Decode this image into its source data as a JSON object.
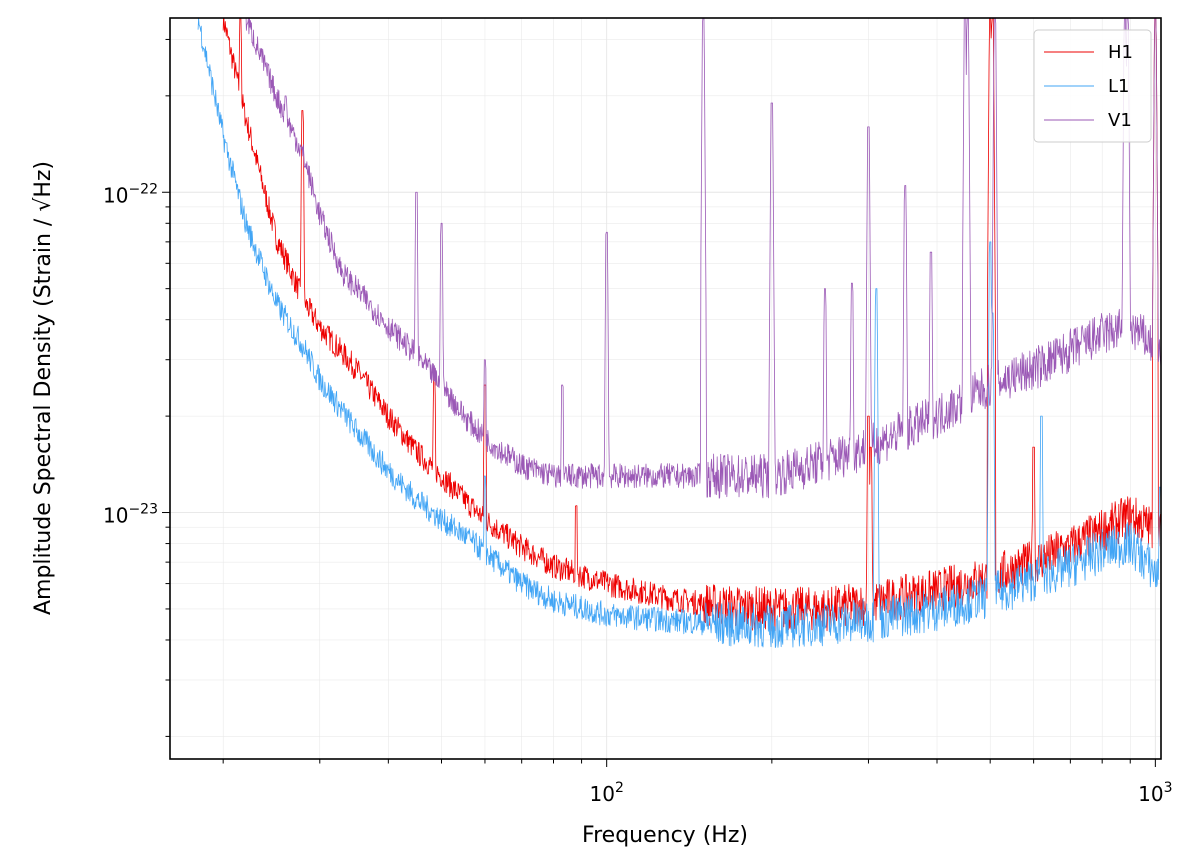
{
  "chart_data": {
    "type": "line",
    "xlabel": "Frequency (Hz)",
    "ylabel": "Amplitude Spectral Density (Strain / √Hz)",
    "x_scale": "log",
    "y_scale": "log",
    "xlim": [
      16,
      1024
    ],
    "ylim": [
      1.7e-24,
      3.5e-22
    ],
    "grid": true,
    "legend_position": "top-right",
    "x_tick_labels": [
      {
        "value": 100,
        "label": "10",
        "exp": "2"
      },
      {
        "value": 1000,
        "label": "10",
        "exp": "3"
      }
    ],
    "y_tick_labels": [
      {
        "value": 1e-23,
        "label": "10",
        "exp": "−23"
      },
      {
        "value": 1e-22,
        "label": "10",
        "exp": "−22"
      }
    ],
    "series": [
      {
        "name": "H1",
        "color": "#ee0000",
        "x": [
          20,
          22,
          25,
          28,
          30,
          35,
          40,
          45,
          50,
          55,
          60,
          70,
          80,
          100,
          130,
          160,
          200,
          250,
          300,
          400,
          500,
          600,
          700,
          800,
          900,
          1000,
          1024
        ],
        "y": [
          3.5e-22,
          1.7e-22,
          7.2e-23,
          4.6e-23,
          3.8e-23,
          2.8e-23,
          2e-23,
          1.55e-23,
          1.3e-23,
          1.1e-23,
          9.5e-24,
          7.8e-24,
          6.8e-24,
          6e-24,
          5.4e-24,
          5.1e-24,
          5e-24,
          5e-24,
          5.2e-24,
          5.7e-24,
          6.3e-24,
          7e-24,
          7.8e-24,
          8.8e-24,
          9.8e-24,
          8.8e-24,
          8.5e-24
        ],
        "lines": [
          {
            "f": 21.5,
            "amp": 3.5e-22
          },
          {
            "f": 27.9,
            "amp": 1.8e-22
          },
          {
            "f": 48.5,
            "amp": 2.7e-23
          },
          {
            "f": 60,
            "amp": 2.5e-23
          },
          {
            "f": 88,
            "amp": 1.05e-23
          },
          {
            "f": 300,
            "amp": 2e-23
          },
          {
            "f": 303,
            "amp": 1.6e-23
          },
          {
            "f": 500,
            "amp": 3.5e-22
          },
          {
            "f": 505,
            "amp": 3.5e-22
          },
          {
            "f": 600,
            "amp": 1.6e-23
          },
          {
            "f": 1000,
            "amp": 3.5e-22
          }
        ]
      },
      {
        "name": "L1",
        "color": "#42a5f5",
        "x": [
          18,
          20,
          22,
          25,
          28,
          30,
          35,
          40,
          45,
          50,
          55,
          60,
          70,
          80,
          100,
          130,
          160,
          200,
          250,
          300,
          400,
          500,
          600,
          700,
          800,
          900,
          1000,
          1024
        ],
        "y": [
          3.5e-22,
          1.5e-22,
          8e-23,
          4.5e-23,
          3.3e-23,
          2.6e-23,
          1.8e-23,
          1.35e-23,
          1.1e-23,
          9.5e-24,
          8.5e-24,
          7.5e-24,
          6e-24,
          5.3e-24,
          4.8e-24,
          4.6e-24,
          4.5e-24,
          4.4e-24,
          4.5e-24,
          4.6e-24,
          5e-24,
          5.5e-24,
          6.2e-24,
          6.8e-24,
          7.6e-24,
          8e-24,
          6.5e-24,
          6e-24
        ],
        "lines": [
          {
            "f": 60,
            "amp": 1.3e-23
          },
          {
            "f": 310,
            "amp": 5e-23
          },
          {
            "f": 500,
            "amp": 7e-23
          },
          {
            "f": 505,
            "amp": 4.2e-23
          },
          {
            "f": 620,
            "amp": 2e-23
          },
          {
            "f": 1020,
            "amp": 1.2e-23
          }
        ]
      },
      {
        "name": "V1",
        "color": "#9b59b6",
        "x": [
          22,
          25,
          28,
          30,
          33,
          35,
          40,
          45,
          50,
          55,
          60,
          70,
          80,
          100,
          130,
          160,
          200,
          250,
          300,
          400,
          500,
          600,
          700,
          800,
          900,
          1000,
          1024
        ],
        "y": [
          3.5e-22,
          2e-22,
          1.3e-22,
          8.5e-23,
          5.6e-23,
          5e-23,
          3.8e-23,
          3.1e-23,
          2.5e-23,
          2e-23,
          1.7e-23,
          1.4e-23,
          1.3e-23,
          1.3e-23,
          1.3e-23,
          1.3e-23,
          1.3e-23,
          1.45e-23,
          1.6e-23,
          2e-23,
          2.5e-23,
          2.8e-23,
          3.2e-23,
          3.6e-23,
          3.8e-23,
          3.3e-23,
          3e-23
        ],
        "lines": [
          {
            "f": 26,
            "amp": 2e-22
          },
          {
            "f": 45,
            "amp": 1e-22
          },
          {
            "f": 50,
            "amp": 8e-23
          },
          {
            "f": 60,
            "amp": 3e-23
          },
          {
            "f": 83,
            "amp": 2.5e-23
          },
          {
            "f": 100,
            "amp": 7.5e-23
          },
          {
            "f": 150,
            "amp": 3.5e-22
          },
          {
            "f": 200,
            "amp": 1.9e-22
          },
          {
            "f": 250,
            "amp": 5e-23
          },
          {
            "f": 280,
            "amp": 5.2e-23
          },
          {
            "f": 300,
            "amp": 1.6e-22
          },
          {
            "f": 350,
            "amp": 1.05e-22
          },
          {
            "f": 390,
            "amp": 6.5e-23
          },
          {
            "f": 450,
            "amp": 3.5e-22
          },
          {
            "f": 455,
            "amp": 3.5e-22
          },
          {
            "f": 510,
            "amp": 3.5e-22
          },
          {
            "f": 880,
            "amp": 3.5e-22
          },
          {
            "f": 890,
            "amp": 3.5e-22
          },
          {
            "f": 1000,
            "amp": 3.5e-22
          }
        ]
      }
    ]
  }
}
